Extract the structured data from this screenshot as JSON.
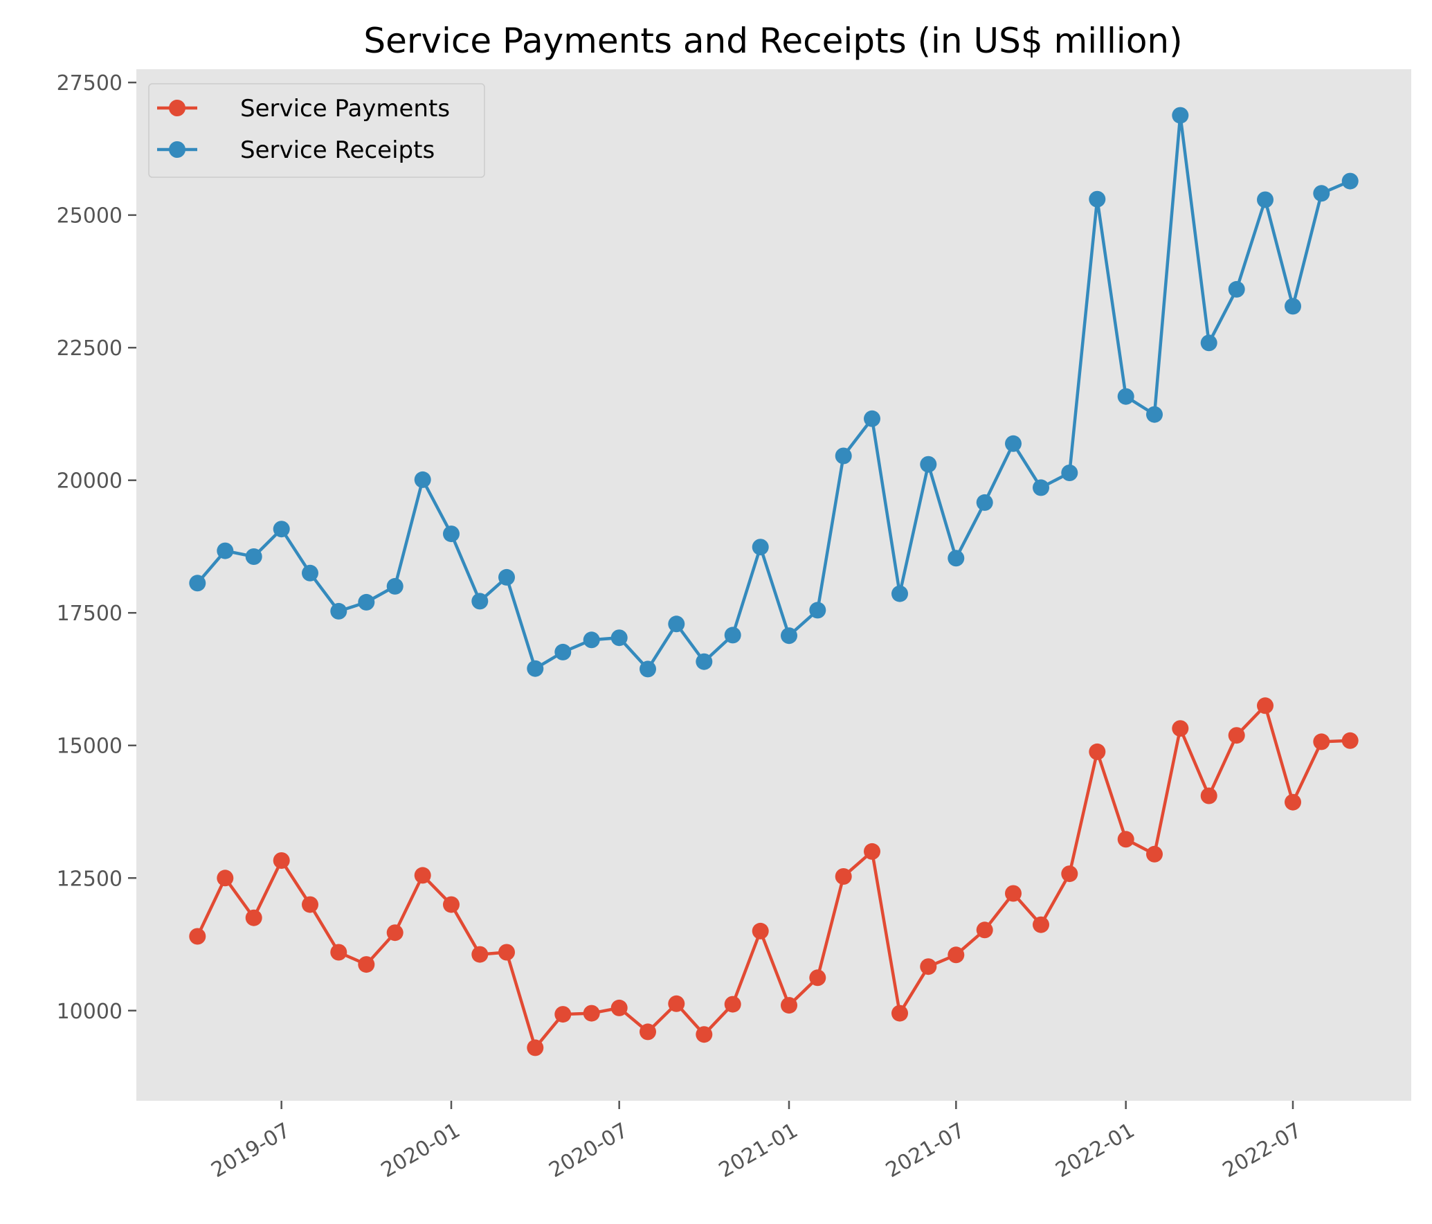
{
  "chart_data": {
    "type": "line",
    "title": "Service Payments and Receipts (in US$ million)",
    "xlabel": "",
    "ylabel": "",
    "x": [
      "2019-04",
      "2019-05",
      "2019-06",
      "2019-07",
      "2019-08",
      "2019-09",
      "2019-10",
      "2019-11",
      "2019-12",
      "2020-01",
      "2020-02",
      "2020-03",
      "2020-04",
      "2020-05",
      "2020-06",
      "2020-07",
      "2020-08",
      "2020-09",
      "2020-10",
      "2020-11",
      "2020-12",
      "2021-01",
      "2021-02",
      "2021-03",
      "2021-04",
      "2021-05",
      "2021-06",
      "2021-07",
      "2021-08",
      "2021-09",
      "2021-10",
      "2021-11",
      "2021-12",
      "2022-01",
      "2022-02",
      "2022-03",
      "2022-04",
      "2022-05",
      "2022-06",
      "2022-07",
      "2022-08",
      "2022-09"
    ],
    "series": [
      {
        "name": "Service Payments",
        "color": "#E24A33",
        "values": [
          11400,
          12500,
          11750,
          12830,
          12000,
          11100,
          10870,
          11470,
          12550,
          12000,
          11060,
          11100,
          9300,
          9930,
          9950,
          10050,
          9600,
          10130,
          9550,
          10120,
          11500,
          10100,
          10620,
          12530,
          13000,
          9950,
          10830,
          11050,
          11520,
          12210,
          11620,
          12580,
          14880,
          13230,
          12950,
          15320,
          14050,
          15190,
          15750,
          13930,
          15070,
          15090
        ]
      },
      {
        "name": "Service Receipts",
        "color": "#348ABD",
        "values": [
          18060,
          18670,
          18560,
          19080,
          18250,
          17530,
          17700,
          18000,
          20010,
          18990,
          17720,
          18170,
          16450,
          16760,
          16990,
          17030,
          16440,
          17290,
          16580,
          17080,
          18740,
          17070,
          17550,
          20460,
          21160,
          17860,
          20300,
          18530,
          19580,
          20690,
          19860,
          20140,
          25300,
          21580,
          21240,
          26880,
          22590,
          23600,
          25290,
          23280,
          25410,
          25640
        ]
      }
    ],
    "ylim": [
      8300,
      27750
    ],
    "yticks": [
      10000,
      12500,
      15000,
      17500,
      20000,
      22500,
      25000,
      27500
    ],
    "xtick_values": [
      "2019-07",
      "2020-01",
      "2020-07",
      "2021-01",
      "2021-07",
      "2022-01",
      "2022-07"
    ],
    "xtick_labels": [
      "2019-07",
      "2020-01",
      "2020-07",
      "2021-01",
      "2021-07",
      "2022-01",
      "2022-07"
    ],
    "grid": false,
    "legend_position": "top-left",
    "background": "#E5E5E5"
  }
}
